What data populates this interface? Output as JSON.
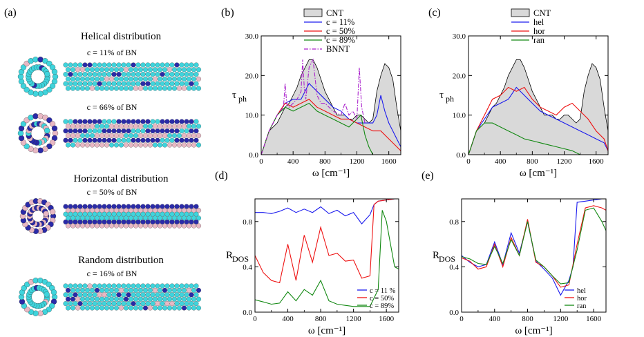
{
  "left_panel": {
    "label": "(a)",
    "sections": [
      {
        "title": "Helical distribution",
        "concentrations": [
          "c = 11% of BN",
          "c = 66% of BN"
        ]
      },
      {
        "title": "Horizontal distribution",
        "concentrations": [
          "c = 50% of BN"
        ]
      },
      {
        "title": "Random distribution",
        "concentrations": [
          "c = 16% of BN"
        ]
      }
    ]
  },
  "colors": {
    "cnt_fill": "#d9d9d9",
    "cnt_line": "#000000",
    "blue": "#1a1aee",
    "red": "#ee1111",
    "green": "#118811",
    "bnnt": "#aa22cc",
    "carbon_atom": "#3fd4dc",
    "boron_atom": "#e8b8c4",
    "nitrogen_atom": "#2a2aa8"
  },
  "chart_data": [
    {
      "id": "b",
      "label": "(b)",
      "type": "area",
      "xlabel": "ω [cm⁻¹]",
      "ylabel": "τ",
      "ylabel_sub": "ph",
      "xlim": [
        0,
        1750
      ],
      "ylim": [
        0,
        30
      ],
      "xticks": [
        0,
        400,
        800,
        1200,
        1600
      ],
      "yticks": [
        0.0,
        10.0,
        20.0,
        30.0
      ],
      "ytick_labels": [
        "0.0",
        "10.0",
        "20.0",
        "30.0"
      ],
      "legend": {
        "placement": "top-center"
      },
      "series": [
        {
          "name": "CNT",
          "kind": "area",
          "color": "#000000",
          "x": [
            0,
            100,
            200,
            250,
            300,
            350,
            400,
            450,
            500,
            550,
            600,
            650,
            700,
            750,
            800,
            850,
            900,
            950,
            1000,
            1050,
            1100,
            1150,
            1200,
            1250,
            1300,
            1350,
            1400,
            1450,
            1500,
            1550,
            1600,
            1650,
            1700,
            1750
          ],
          "y": [
            0,
            6,
            8,
            10,
            12,
            13,
            15,
            17,
            20,
            22,
            24,
            24,
            22,
            19,
            16,
            14,
            12,
            10,
            10,
            10,
            9,
            9,
            10,
            10,
            9,
            8,
            9,
            16,
            20,
            23,
            22,
            19,
            12,
            6
          ]
        },
        {
          "name": "c = 11%",
          "kind": "line",
          "color": "#1a1aee",
          "x": [
            0,
            100,
            200,
            300,
            400,
            500,
            600,
            700,
            800,
            900,
            1000,
            1100,
            1200,
            1300,
            1400,
            1450,
            1500,
            1550,
            1600,
            1650,
            1700,
            1750
          ],
          "y": [
            0,
            6,
            10,
            13,
            14,
            14,
            18,
            16,
            14,
            12,
            11,
            9,
            8,
            8,
            8,
            10,
            15,
            11,
            8,
            6,
            4,
            2
          ]
        },
        {
          "name": "c = 50%",
          "kind": "line",
          "color": "#ee1111",
          "x": [
            0,
            100,
            200,
            300,
            400,
            500,
            600,
            700,
            800,
            900,
            1000,
            1100,
            1200,
            1300,
            1400,
            1500,
            1600,
            1700,
            1750
          ],
          "y": [
            0,
            6,
            10,
            13,
            12,
            13,
            14,
            12,
            11,
            10,
            9,
            9,
            8,
            7,
            6,
            6,
            4,
            2,
            1
          ]
        },
        {
          "name": "c = 89%",
          "kind": "line",
          "color": "#118811",
          "x": [
            0,
            100,
            200,
            300,
            400,
            500,
            600,
            700,
            800,
            900,
            1000,
            1100,
            1200,
            1250,
            1300,
            1350,
            1400
          ],
          "y": [
            0,
            6,
            10,
            12,
            11,
            12,
            13,
            11,
            10,
            9,
            8,
            7,
            9,
            10,
            5,
            2,
            0
          ]
        },
        {
          "name": "BNNT",
          "kind": "dashdot",
          "color": "#aa22cc",
          "x": [
            0,
            100,
            200,
            280,
            300,
            320,
            350,
            400,
            450,
            500,
            520,
            540,
            560,
            600,
            650,
            700,
            750,
            800,
            900,
            1000,
            1050,
            1100,
            1150,
            1200,
            1230,
            1260,
            1300
          ],
          "y": [
            0,
            6,
            10,
            12,
            18,
            13,
            12,
            13,
            14,
            16,
            24,
            17,
            14,
            22,
            24,
            15,
            13,
            13,
            11,
            10,
            13,
            10,
            11,
            9,
            22,
            12,
            8
          ]
        }
      ]
    },
    {
      "id": "c",
      "label": "(c)",
      "type": "area",
      "xlabel": "ω [cm⁻¹]",
      "ylabel": "τ",
      "ylabel_sub": "ph",
      "xlim": [
        0,
        1750
      ],
      "ylim": [
        0,
        30
      ],
      "xticks": [
        0,
        400,
        800,
        1200,
        1600
      ],
      "yticks": [
        0.0,
        10.0,
        20.0,
        30.0
      ],
      "ytick_labels": [
        "0.0",
        "10.0",
        "20.0",
        "30.0"
      ],
      "legend": {
        "placement": "top-center"
      },
      "series": [
        {
          "name": "CNT",
          "kind": "area",
          "color": "#000000",
          "x": [
            0,
            100,
            200,
            250,
            300,
            350,
            400,
            450,
            500,
            550,
            600,
            650,
            700,
            750,
            800,
            850,
            900,
            950,
            1000,
            1050,
            1100,
            1150,
            1200,
            1250,
            1300,
            1350,
            1400,
            1450,
            1500,
            1550,
            1600,
            1650,
            1700,
            1750
          ],
          "y": [
            0,
            6,
            8,
            10,
            12,
            13,
            15,
            17,
            20,
            22,
            24,
            24,
            22,
            19,
            16,
            14,
            12,
            10,
            10,
            10,
            9,
            9,
            10,
            10,
            9,
            8,
            9,
            16,
            20,
            23,
            22,
            19,
            12,
            6
          ]
        },
        {
          "name": "hel",
          "kind": "line",
          "color": "#1a1aee",
          "x": [
            0,
            100,
            200,
            300,
            400,
            500,
            600,
            700,
            800,
            900,
            1000,
            1100,
            1200,
            1300,
            1400,
            1500,
            1600,
            1700,
            1750
          ],
          "y": [
            0,
            6,
            9,
            12,
            13,
            14,
            17,
            15,
            13,
            11,
            10,
            9,
            8,
            7,
            6,
            5,
            4,
            3,
            1
          ]
        },
        {
          "name": "hor",
          "kind": "line",
          "color": "#ee1111",
          "x": [
            0,
            100,
            200,
            300,
            400,
            500,
            600,
            700,
            800,
            900,
            1000,
            1100,
            1200,
            1300,
            1400,
            1500,
            1600,
            1700,
            1750
          ],
          "y": [
            0,
            6,
            10,
            14,
            15,
            17,
            16,
            17,
            14,
            12,
            11,
            10,
            12,
            13,
            11,
            9,
            6,
            4,
            1
          ]
        },
        {
          "name": "ran",
          "kind": "line",
          "color": "#118811",
          "x": [
            0,
            100,
            200,
            300,
            400,
            500,
            600,
            700,
            800,
            900,
            1000,
            1100,
            1200,
            1300,
            1400
          ],
          "y": [
            0,
            6,
            8,
            8,
            7,
            6,
            5,
            4,
            3.5,
            3,
            2.5,
            2,
            1.5,
            1,
            0
          ]
        }
      ]
    },
    {
      "id": "d",
      "label": "(d)",
      "type": "line",
      "xlabel": "ω [cm⁻¹]",
      "ylabel": "R",
      "ylabel_sub": "DOS",
      "xlim": [
        0,
        1750
      ],
      "ylim": [
        0,
        1
      ],
      "xticks": [
        0,
        400,
        800,
        1200,
        1600
      ],
      "yticks": [
        0.0,
        0.4,
        0.8
      ],
      "ytick_labels": [
        "0.0",
        "0.4",
        "0.8"
      ],
      "legend": {
        "placement": "bottom-right"
      },
      "series": [
        {
          "name": "c = 11 %",
          "color": "#1a1aee",
          "x": [
            0,
            100,
            200,
            300,
            400,
            500,
            600,
            700,
            800,
            900,
            1000,
            1100,
            1200,
            1300,
            1400,
            1450,
            1500,
            1600,
            1700,
            1750
          ],
          "y": [
            0.88,
            0.88,
            0.87,
            0.89,
            0.92,
            0.88,
            0.91,
            0.88,
            0.93,
            0.87,
            0.9,
            0.85,
            0.88,
            0.78,
            0.86,
            0.95,
            0.98,
            0.99,
            1.0,
            1.0
          ]
        },
        {
          "name": "c = 50%",
          "color": "#ee1111",
          "x": [
            0,
            100,
            200,
            300,
            400,
            500,
            600,
            700,
            800,
            900,
            1000,
            1100,
            1200,
            1300,
            1400,
            1450,
            1500,
            1600,
            1700,
            1750
          ],
          "y": [
            0.5,
            0.35,
            0.28,
            0.26,
            0.6,
            0.28,
            0.68,
            0.44,
            0.75,
            0.5,
            0.52,
            0.45,
            0.46,
            0.3,
            0.32,
            0.95,
            0.98,
            0.99,
            1.0,
            1.0
          ]
        },
        {
          "name": "c = 89%",
          "color": "#118811",
          "x": [
            0,
            100,
            200,
            300,
            400,
            500,
            600,
            700,
            800,
            900,
            1000,
            1100,
            1200,
            1300,
            1400,
            1500,
            1550,
            1600,
            1700,
            1750
          ],
          "y": [
            0.11,
            0.09,
            0.07,
            0.08,
            0.18,
            0.1,
            0.2,
            0.15,
            0.28,
            0.1,
            0.07,
            0.06,
            0.05,
            0.05,
            0.05,
            0.2,
            0.9,
            0.8,
            0.4,
            0.38
          ]
        }
      ]
    },
    {
      "id": "e",
      "label": "(e)",
      "type": "line",
      "xlabel": "ω [cm⁻¹]",
      "ylabel": "R",
      "ylabel_sub": "DOS",
      "xlim": [
        0,
        1750
      ],
      "ylim": [
        0,
        1
      ],
      "xticks": [
        0,
        400,
        800,
        1200,
        1600
      ],
      "yticks": [
        0.0,
        0.4,
        0.8
      ],
      "ytick_labels": [
        "0.0",
        "0.4",
        "0.8"
      ],
      "legend": {
        "placement": "bottom-right"
      },
      "series": [
        {
          "name": "hel",
          "color": "#1a1aee",
          "x": [
            0,
            100,
            200,
            300,
            400,
            500,
            600,
            700,
            800,
            900,
            1000,
            1100,
            1200,
            1300,
            1350,
            1400,
            1500,
            1600,
            1700,
            1750
          ],
          "y": [
            0.5,
            0.44,
            0.4,
            0.42,
            0.62,
            0.42,
            0.7,
            0.52,
            0.8,
            0.45,
            0.38,
            0.3,
            0.15,
            0.28,
            0.4,
            0.97,
            0.98,
            0.99,
            1.0,
            1.0
          ]
        },
        {
          "name": "hor",
          "color": "#ee1111",
          "x": [
            0,
            100,
            200,
            300,
            400,
            500,
            600,
            700,
            800,
            900,
            1000,
            1100,
            1200,
            1300,
            1400,
            1500,
            1600,
            1700,
            1750
          ],
          "y": [
            0.48,
            0.45,
            0.38,
            0.4,
            0.6,
            0.4,
            0.66,
            0.5,
            0.82,
            0.44,
            0.4,
            0.32,
            0.22,
            0.24,
            0.6,
            0.92,
            0.94,
            0.92,
            0.9
          ]
        },
        {
          "name": "ran",
          "color": "#118811",
          "x": [
            0,
            100,
            200,
            300,
            400,
            500,
            600,
            700,
            800,
            900,
            1000,
            1100,
            1200,
            1300,
            1400,
            1500,
            1600,
            1700,
            1750
          ],
          "y": [
            0.49,
            0.47,
            0.43,
            0.42,
            0.58,
            0.43,
            0.64,
            0.5,
            0.8,
            0.46,
            0.4,
            0.32,
            0.25,
            0.26,
            0.55,
            0.9,
            0.92,
            0.8,
            0.72
          ]
        }
      ]
    }
  ]
}
